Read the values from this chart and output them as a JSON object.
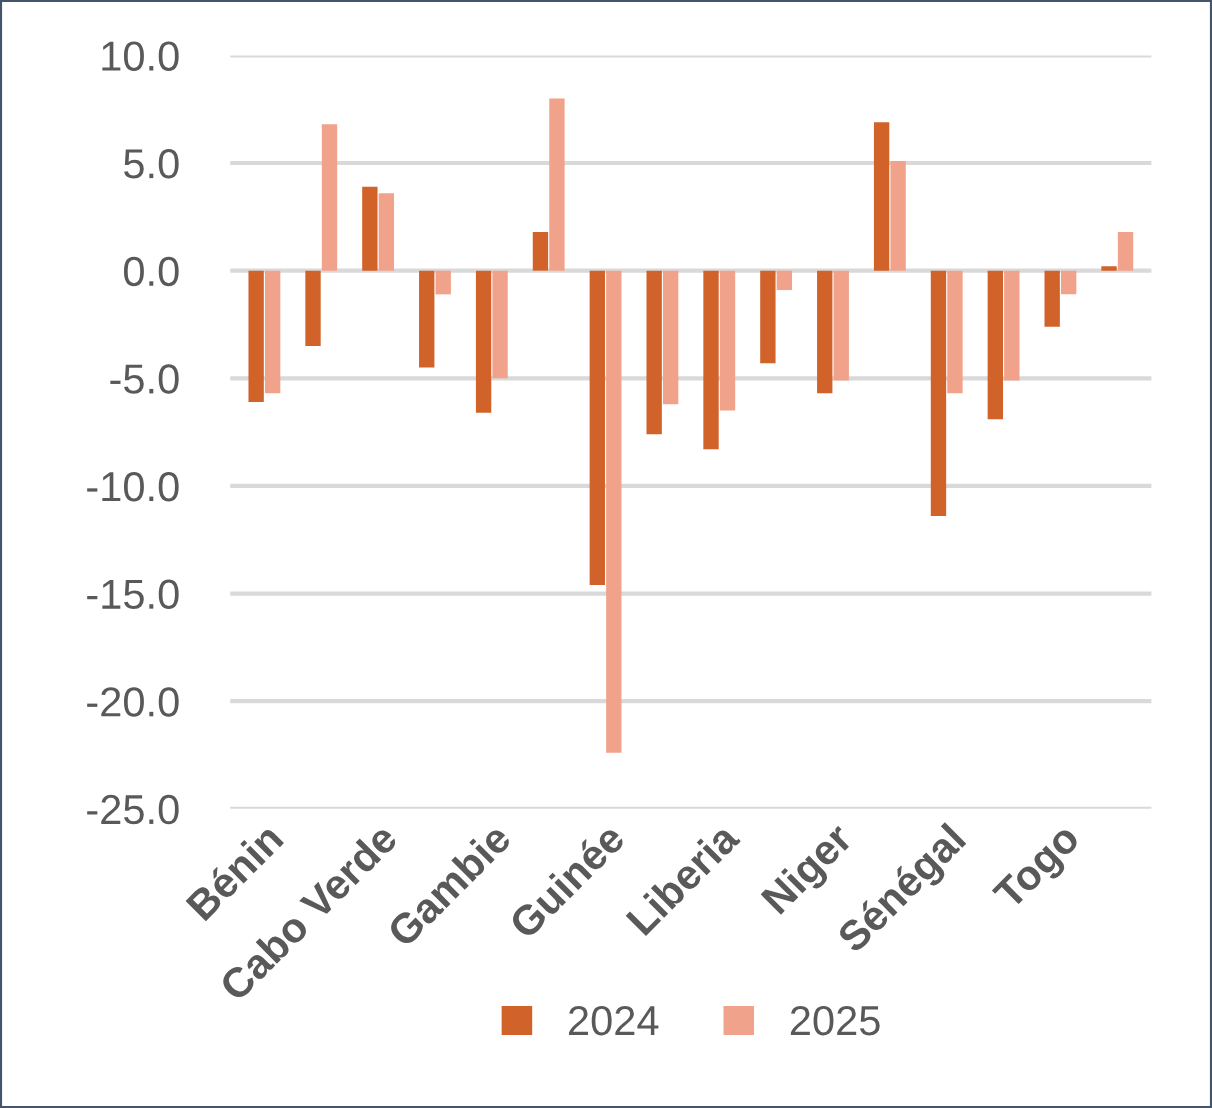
{
  "chart_data": {
    "type": "bar",
    "categories": [
      "Bénin",
      null,
      "Cabo Verde",
      null,
      "Gambie",
      null,
      "Guinée",
      null,
      "Liberia",
      null,
      "Niger",
      null,
      "Sénégal",
      null,
      "Togo",
      null
    ],
    "series": [
      {
        "name": "2024",
        "color": "#d0622a",
        "values": [
          -6.1,
          -3.5,
          3.9,
          -4.5,
          -6.6,
          1.8,
          -14.6,
          -7.6,
          -8.3,
          -4.3,
          -5.7,
          6.9,
          -11.4,
          -6.9,
          -2.6,
          0.2
        ]
      },
      {
        "name": "2025",
        "color": "#f0a28a",
        "values": [
          -5.7,
          6.8,
          3.6,
          -1.1,
          -5.0,
          8.0,
          -22.4,
          -6.2,
          -6.5,
          -0.9,
          -5.1,
          5.1,
          -5.7,
          -5.1,
          -1.1,
          1.8
        ]
      }
    ],
    "ylim": [
      -25,
      10
    ],
    "yticks": [
      {
        "value": -25,
        "label": "-25.0"
      },
      {
        "value": -20,
        "label": "-20.0"
      },
      {
        "value": -15,
        "label": "-15.0"
      },
      {
        "value": -10,
        "label": "-10.0"
      },
      {
        "value": -5,
        "label": "-5.0"
      },
      {
        "value": 0,
        "label": "0.0"
      },
      {
        "value": 5,
        "label": "5.0"
      },
      {
        "value": 10,
        "label": "10.0"
      }
    ],
    "grid": "y",
    "legend": "bottom"
  }
}
